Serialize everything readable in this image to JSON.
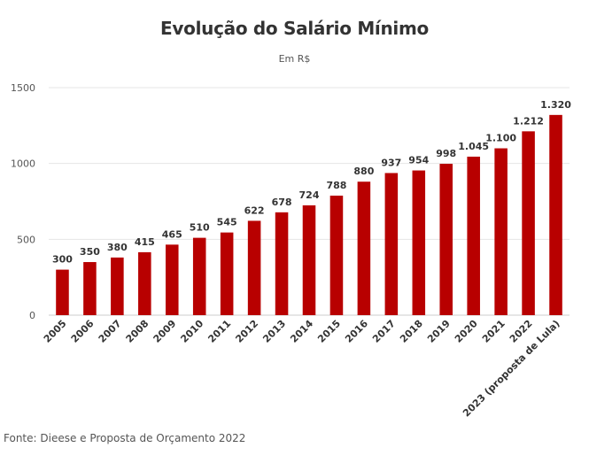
{
  "chart_data": {
    "type": "bar",
    "title": "Evolução do Salário Mínimo",
    "subtitle": "Em R$",
    "categories": [
      "2005",
      "2006",
      "2007",
      "2008",
      "2009",
      "2010",
      "2011",
      "2012",
      "2013",
      "2014",
      "2015",
      "2016",
      "2017",
      "2018",
      "2019",
      "2020",
      "2021",
      "2022",
      "2023 (proposta de Lula)"
    ],
    "values": [
      300,
      350,
      380,
      415,
      465,
      510,
      545,
      622,
      678,
      724,
      788,
      880,
      937,
      954,
      998,
      1045,
      1100,
      1212,
      1320
    ],
    "data_labels": [
      "300",
      "350",
      "380",
      "415",
      "465",
      "510",
      "545",
      "622",
      "678",
      "724",
      "788",
      "880",
      "937",
      "954",
      "998",
      "1.045",
      "1.100",
      "1.212",
      "1.320"
    ],
    "ylim": [
      0,
      1500
    ],
    "yticks": [
      0,
      500,
      1000,
      1500
    ],
    "grid": true,
    "bar_color": "#b80000"
  },
  "source": "Fonte: Dieese e Proposta de Orçamento 2022"
}
